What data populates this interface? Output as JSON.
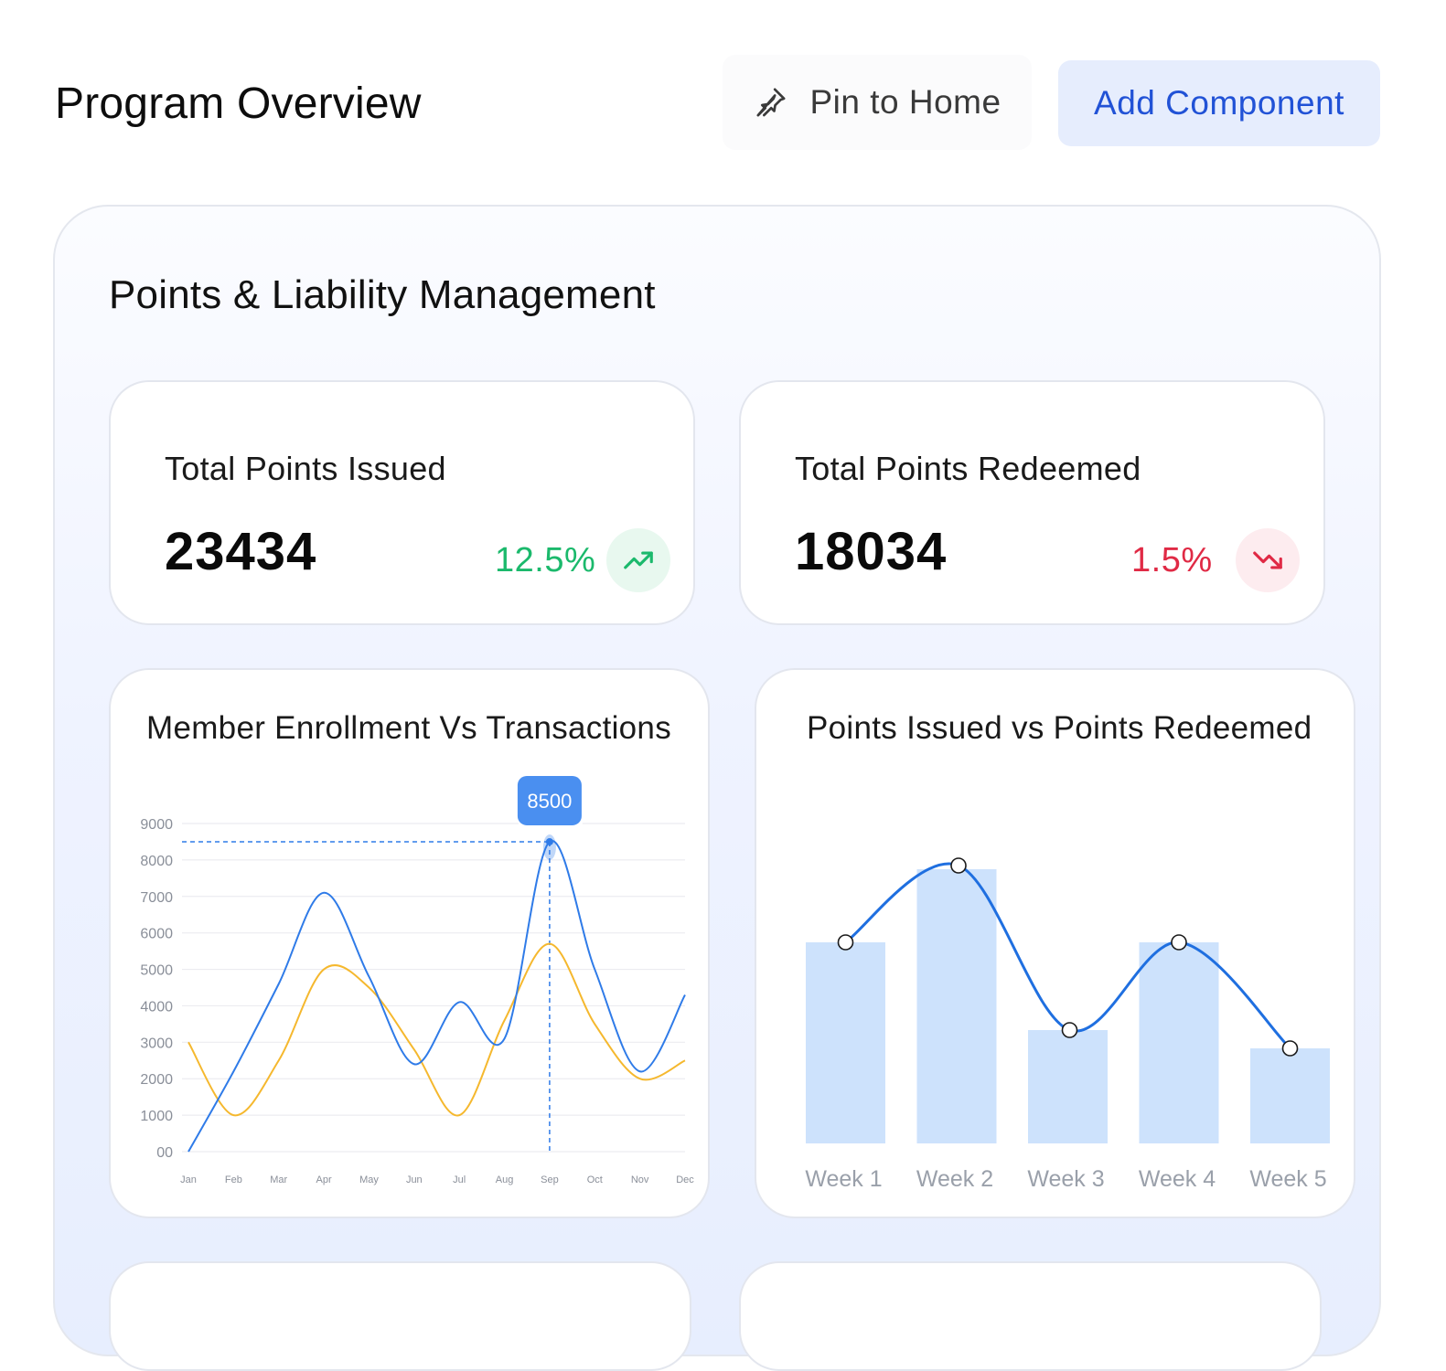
{
  "header": {
    "title": "Program Overview",
    "pin_label": "Pin to Home",
    "add_label": "Add Component"
  },
  "section": {
    "title": "Points & Liability Management"
  },
  "kpis": {
    "issued": {
      "label": "Total Points Issued",
      "value": "23434",
      "change": "12.5%",
      "trend": "up",
      "color": "#1bb96c",
      "badge_bg": "#e8f8ef"
    },
    "redeemed": {
      "label": "Total Points Redeemed",
      "value": "18034",
      "change": "1.5%",
      "trend": "down",
      "color": "#e02a45",
      "badge_bg": "#fdecef"
    }
  },
  "charts": {
    "enrollment_title": "Member Enrollment Vs Transactions",
    "points_title": "Points Issued vs Points Redeemed"
  },
  "chart_data": [
    {
      "type": "line",
      "title": "Member Enrollment Vs Transactions",
      "categories": [
        "Jan",
        "Feb",
        "Mar",
        "Apr",
        "May",
        "Jun",
        "Jul",
        "Aug",
        "Sep",
        "Oct",
        "Nov",
        "Dec"
      ],
      "y_ticks": [
        "00",
        "1000",
        "2000",
        "3000",
        "4000",
        "5000",
        "6000",
        "7000",
        "8000",
        "9000"
      ],
      "ylim": [
        0,
        9000
      ],
      "grid": true,
      "series": [
        {
          "values": [
            0,
            2200,
            4600,
            7100,
            4800,
            2400,
            4100,
            3100,
            8500,
            5000,
            2200,
            4300
          ],
          "color": "#2f7be8"
        },
        {
          "values": [
            3000,
            1000,
            2500,
            5000,
            4500,
            2800,
            1000,
            3600,
            5700,
            3500,
            2000,
            2500
          ],
          "color": "#f5b82e"
        }
      ],
      "tooltip": {
        "category": "Sep",
        "label": "8500",
        "color": "#4a8ff0"
      }
    },
    {
      "type": "bar",
      "title": "Points Issued vs Points Redeemed",
      "categories": [
        "Week 1",
        "Week 2",
        "Week 3",
        "Week 4",
        "Week 5"
      ],
      "ylim": [
        0,
        100
      ],
      "series": [
        {
          "type": "bar",
          "values": [
            55,
            75,
            31,
            55,
            26
          ],
          "color": "#cde2fc"
        },
        {
          "type": "line",
          "values": [
            55,
            76,
            31,
            55,
            26
          ],
          "color": "#1f6fe0"
        }
      ]
    }
  ]
}
